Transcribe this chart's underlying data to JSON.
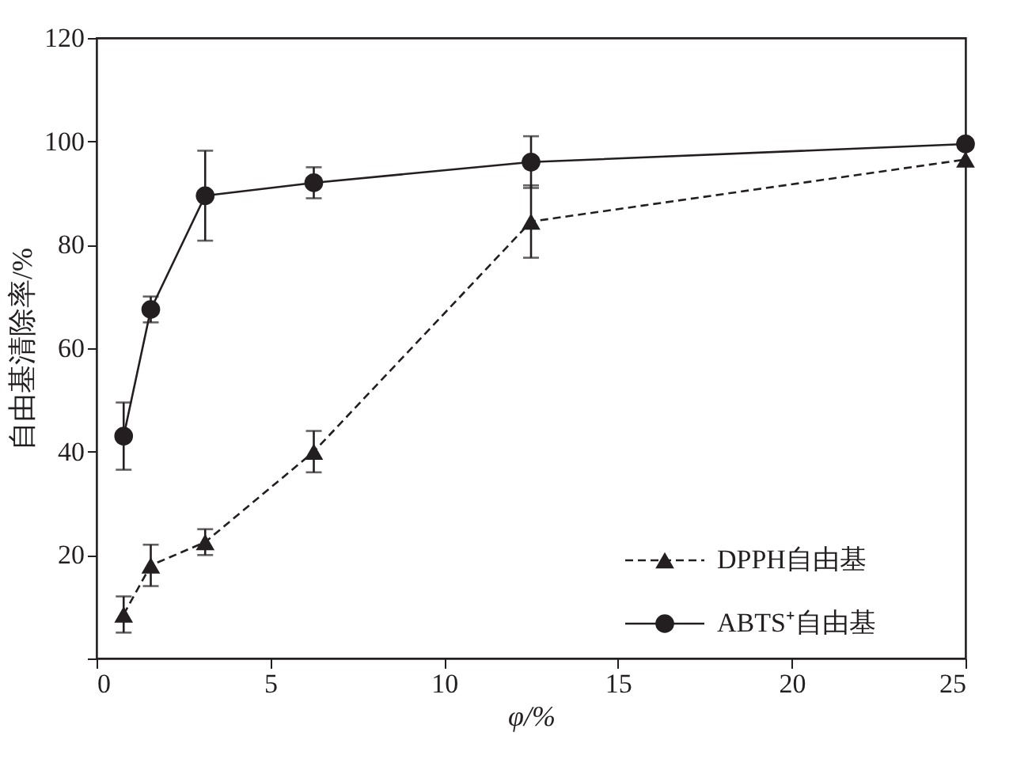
{
  "chart_data": {
    "type": "line",
    "xlabel": "φ/%",
    "ylabel": "自由基清除率/%",
    "xlim": [
      0,
      25
    ],
    "xticks": [
      0,
      5,
      10,
      15,
      20,
      25
    ],
    "ylim": [
      0,
      120
    ],
    "yticks": [
      {
        "value": 0,
        "label": null
      },
      20,
      40,
      60,
      80,
      100,
      120
    ],
    "grid": false,
    "legend": "bottom right",
    "series": [
      {
        "name": "DPPH自由基",
        "color": "#231f20",
        "marker": "triangle",
        "line_style": "dashed",
        "x": [
          0.78,
          1.56,
          3.125,
          6.25,
          12.5,
          25
        ],
        "values": [
          8.5,
          18,
          22.5,
          40,
          84.5,
          96.5
        ],
        "errors": [
          3.5,
          4,
          2.5,
          4,
          7,
          null
        ]
      },
      {
        "name": "ABTS⁺自由基",
        "color": "#231f20",
        "marker": "circle",
        "line_style": "solid",
        "x": [
          0.78,
          1.56,
          3.125,
          6.25,
          12.5,
          25
        ],
        "values": [
          43,
          67.5,
          89.5,
          92,
          96,
          99.5
        ],
        "errors": [
          6.5,
          2.5,
          8.7,
          3,
          5,
          null
        ]
      }
    ]
  }
}
